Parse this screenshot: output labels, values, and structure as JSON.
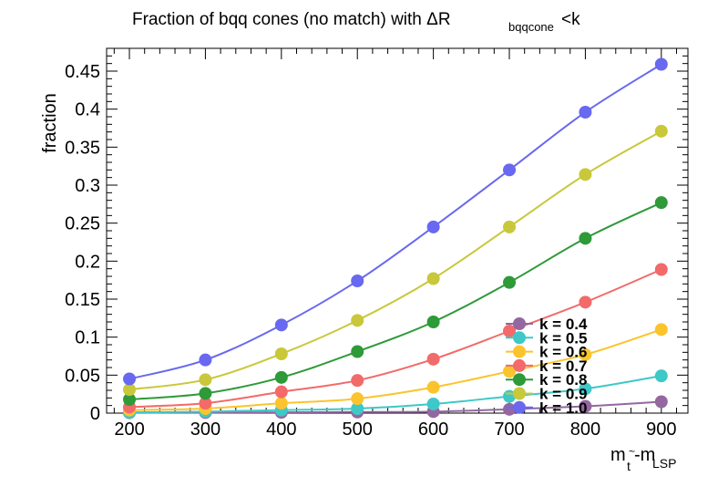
{
  "chart_data": {
    "type": "line",
    "title": {
      "main": "Fraction of bqq cones (no match) with ΔR",
      "sub": "bqqcone",
      "suffix": "<k"
    },
    "xlabel": {
      "main": "m",
      "sub1": "t",
      "mid": "-m",
      "sub2": "LSP",
      "tilde": "~"
    },
    "ylabel": "fraction",
    "xlim": [
      170,
      935
    ],
    "ylim": [
      0,
      0.48
    ],
    "xticks": [
      200,
      300,
      400,
      500,
      600,
      700,
      800,
      900
    ],
    "xtick_labels": [
      "200",
      "300",
      "400",
      "500",
      "600",
      "700",
      "800",
      "900"
    ],
    "yticks": [
      0,
      0.05,
      0.1,
      0.15,
      0.2,
      0.25,
      0.3,
      0.35,
      0.4,
      0.45
    ],
    "ytick_labels": [
      "0",
      "0.05",
      "0.1",
      "0.15",
      "0.2",
      "0.25",
      "0.3",
      "0.35",
      "0.4",
      "0.45"
    ],
    "grid": false,
    "legend_position": "bottom-right",
    "x": [
      200,
      300,
      400,
      500,
      600,
      700,
      800,
      900
    ],
    "series": [
      {
        "name": "k = 0.4",
        "color": "#9467a0",
        "values": [
          0.0005,
          0.0008,
          0.001,
          0.0015,
          0.002,
          0.005,
          0.009,
          0.015
        ]
      },
      {
        "name": "k = 0.5",
        "color": "#3ec8c8",
        "values": [
          0.001,
          0.002,
          0.004,
          0.006,
          0.012,
          0.022,
          0.032,
          0.049
        ]
      },
      {
        "name": "k = 0.6",
        "color": "#fbc42d",
        "values": [
          0.004,
          0.006,
          0.013,
          0.019,
          0.034,
          0.055,
          0.077,
          0.11
        ]
      },
      {
        "name": "k = 0.7",
        "color": "#f26a6a",
        "values": [
          0.008,
          0.013,
          0.028,
          0.043,
          0.071,
          0.108,
          0.146,
          0.189
        ]
      },
      {
        "name": "k = 0.8",
        "color": "#2e9a38",
        "values": [
          0.018,
          0.026,
          0.047,
          0.081,
          0.12,
          0.172,
          0.23,
          0.277
        ]
      },
      {
        "name": "k = 0.9",
        "color": "#c8c83a",
        "values": [
          0.031,
          0.044,
          0.078,
          0.122,
          0.177,
          0.245,
          0.314,
          0.371
        ]
      },
      {
        "name": "k = 1.0",
        "color": "#6868f0",
        "values": [
          0.045,
          0.07,
          0.116,
          0.174,
          0.245,
          0.32,
          0.396,
          0.459
        ]
      }
    ]
  }
}
